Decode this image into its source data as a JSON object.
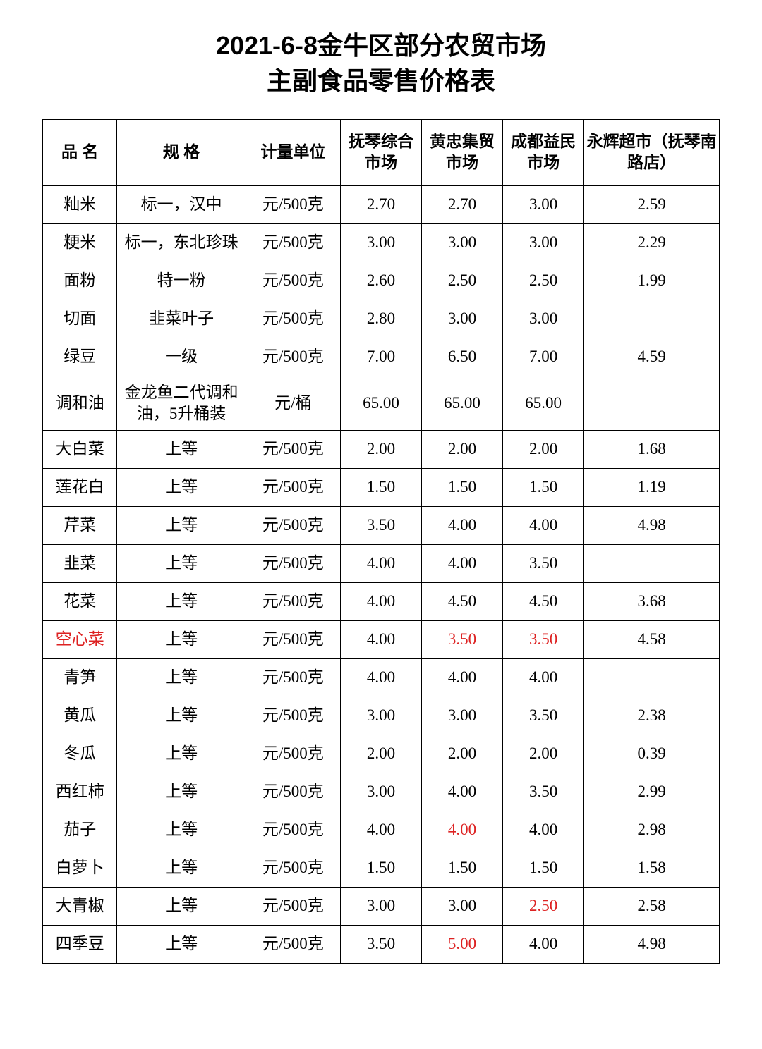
{
  "title_line1": "2021-6-8金牛区部分农贸市场",
  "title_line2": "主副食品零售价格表",
  "columns": [
    "品 名",
    "规  格",
    "计量单位",
    "抚琴综合市场",
    "黄忠集贸市场",
    "成都益民市场",
    "永辉超市（抚琴南路店）"
  ],
  "rows": [
    {
      "name": "籼米",
      "spec": "标一，汉中",
      "unit": "元/500克",
      "m1": "2.70",
      "m2": "2.70",
      "m3": "3.00",
      "m4": "2.59"
    },
    {
      "name": "粳米",
      "spec": "标一，东北珍珠",
      "unit": "元/500克",
      "m1": "3.00",
      "m2": "3.00",
      "m3": "3.00",
      "m4": "2.29"
    },
    {
      "name": "面粉",
      "spec": "特一粉",
      "unit": "元/500克",
      "m1": "2.60",
      "m2": "2.50",
      "m3": "2.50",
      "m4": "1.99"
    },
    {
      "name": "切面",
      "spec": "韭菜叶子",
      "unit": "元/500克",
      "m1": "2.80",
      "m2": "3.00",
      "m3": "3.00",
      "m4": ""
    },
    {
      "name": "绿豆",
      "spec": "一级",
      "unit": "元/500克",
      "m1": "7.00",
      "m2": "6.50",
      "m3": "7.00",
      "m4": "4.59"
    },
    {
      "name": "调和油",
      "spec": "金龙鱼二代调和油，5升桶装",
      "unit": "元/桶",
      "m1": "65.00",
      "m2": "65.00",
      "m3": "65.00",
      "m4": ""
    },
    {
      "name": "大白菜",
      "spec": "上等",
      "unit": "元/500克",
      "m1": "2.00",
      "m2": "2.00",
      "m3": "2.00",
      "m4": "1.68"
    },
    {
      "name": "莲花白",
      "spec": "上等",
      "unit": "元/500克",
      "m1": "1.50",
      "m2": "1.50",
      "m3": "1.50",
      "m4": "1.19"
    },
    {
      "name": "芹菜",
      "spec": "上等",
      "unit": "元/500克",
      "m1": "3.50",
      "m2": "4.00",
      "m3": "4.00",
      "m4": "4.98"
    },
    {
      "name": "韭菜",
      "spec": "上等",
      "unit": "元/500克",
      "m1": "4.00",
      "m2": "4.00",
      "m3": "3.50",
      "m4": ""
    },
    {
      "name": "花菜",
      "spec": "上等",
      "unit": "元/500克",
      "m1": "4.00",
      "m2": "4.50",
      "m3": "4.50",
      "m4": "3.68"
    },
    {
      "name": "空心菜",
      "name_red": true,
      "spec": "上等",
      "unit": "元/500克",
      "m1": "4.00",
      "m2": "3.50",
      "m2_red": true,
      "m3": "3.50",
      "m3_red": true,
      "m4": "4.58"
    },
    {
      "name": "青笋",
      "spec": "上等",
      "unit": "元/500克",
      "m1": "4.00",
      "m2": "4.00",
      "m3": "4.00",
      "m4": ""
    },
    {
      "name": "黄瓜",
      "spec": "上等",
      "unit": "元/500克",
      "m1": "3.00",
      "m2": "3.00",
      "m3": "3.50",
      "m4": "2.38"
    },
    {
      "name": "冬瓜",
      "spec": "上等",
      "unit": "元/500克",
      "m1": "2.00",
      "m2": "2.00",
      "m3": "2.00",
      "m4": "0.39"
    },
    {
      "name": "西红柿",
      "spec": "上等",
      "unit": "元/500克",
      "m1": "3.00",
      "m2": "4.00",
      "m3": "3.50",
      "m4": "2.99"
    },
    {
      "name": "茄子",
      "spec": "上等",
      "unit": "元/500克",
      "m1": "4.00",
      "m2": "4.00",
      "m2_red": true,
      "m3": "4.00",
      "m4": "2.98"
    },
    {
      "name": "白萝卜",
      "spec": "上等",
      "unit": "元/500克",
      "m1": "1.50",
      "m2": "1.50",
      "m3": "1.50",
      "m4": "1.58"
    },
    {
      "name": "大青椒",
      "spec": "上等",
      "unit": "元/500克",
      "m1": "3.00",
      "m2": "3.00",
      "m3": "2.50",
      "m3_red": true,
      "m4": "2.58"
    },
    {
      "name": "四季豆",
      "spec": "上等",
      "unit": "元/500克",
      "m1": "3.50",
      "m2": "5.00",
      "m2_red": true,
      "m3": "4.00",
      "m4": "4.98"
    }
  ]
}
